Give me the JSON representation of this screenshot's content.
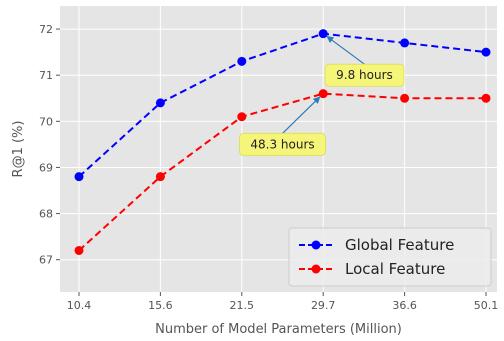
{
  "chart_data": {
    "type": "line",
    "title": "",
    "xlabel": "Number of Model Parameters (Million)",
    "ylabel": "R@1 (%)",
    "x": [
      10.4,
      15.6,
      21.5,
      29.7,
      36.6,
      50.1
    ],
    "x_tick_labels": [
      "10.4",
      "15.6",
      "21.5",
      "29.7",
      "36.6",
      "50.1"
    ],
    "y_ticks": [
      67,
      68,
      69,
      70,
      71,
      72
    ],
    "y_tick_labels": [
      "67",
      "68",
      "69",
      "70",
      "71",
      "72"
    ],
    "ylim": [
      66.3,
      72.5
    ],
    "x_scale": "categorical (evenly spaced)",
    "grid": true,
    "legend_position": "lower-right",
    "series": [
      {
        "name": "Global Feature",
        "values": [
          68.8,
          70.4,
          71.3,
          71.9,
          71.7,
          71.5
        ],
        "color": "#0000ff",
        "linestyle": "dashed",
        "marker": "circle"
      },
      {
        "name": "Local Feature",
        "values": [
          67.2,
          68.8,
          70.1,
          70.6,
          70.5,
          70.5
        ],
        "color": "#ff0000",
        "linestyle": "dashed",
        "marker": "circle"
      }
    ],
    "annotations": [
      {
        "text": "9.8 hours",
        "series": "Global Feature",
        "point_x": 29.7,
        "point_y": 71.9,
        "label_x": 33.2,
        "label_y": 71.0
      },
      {
        "text": "48.3 hours",
        "series": "Local Feature",
        "point_x": 29.7,
        "point_y": 70.6,
        "label_x": 25.6,
        "label_y": 69.5
      }
    ],
    "colors": {
      "plot_background": "#e5e5e5",
      "grid": "#ffffff",
      "annotation_box": "#f5f57a",
      "annotation_arrow": "#2b7bb9"
    }
  }
}
